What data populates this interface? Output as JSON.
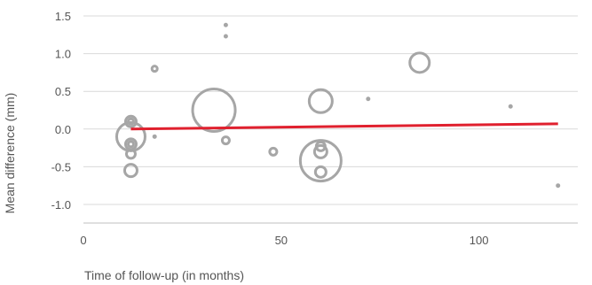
{
  "chart_data": {
    "type": "scatter",
    "title": "",
    "xlabel": "Time of follow-up (in months)",
    "ylabel": "Mean difference (mm)",
    "xlim": [
      0,
      125
    ],
    "ylim": [
      -1.25,
      1.5
    ],
    "xticks": [
      0,
      50,
      100
    ],
    "yticks": [
      -1.0,
      -0.5,
      0.0,
      0.5,
      1.0,
      1.5
    ],
    "ytick_labels": [
      "-1.0",
      "-0.5",
      "0.0",
      "0.5",
      "1.0",
      "1.5"
    ],
    "xtick_labels": [
      "0",
      "50",
      "100"
    ],
    "grid": "horizontal",
    "point_color": "#a6a6a6",
    "line_color": "#e0202e",
    "series": [
      {
        "name": "",
        "marker": "open-circle",
        "points": [
          {
            "x": 12,
            "y": 0.1,
            "size": 6
          },
          {
            "x": 12,
            "y": 0.1,
            "size": 3
          },
          {
            "x": 12,
            "y": -0.1,
            "size": 16
          },
          {
            "x": 12,
            "y": -0.2,
            "size": 6
          },
          {
            "x": 12,
            "y": -0.2,
            "size": 3
          },
          {
            "x": 12,
            "y": -0.33,
            "size": 5
          },
          {
            "x": 12,
            "y": -0.55,
            "size": 7
          },
          {
            "x": 18,
            "y": 0.8,
            "size": 3
          },
          {
            "x": 18,
            "y": -0.1,
            "size": 2
          },
          {
            "x": 33,
            "y": 0.25,
            "size": 24
          },
          {
            "x": 36,
            "y": 1.38,
            "size": 2
          },
          {
            "x": 36,
            "y": 1.23,
            "size": 2
          },
          {
            "x": 36,
            "y": -0.15,
            "size": 4
          },
          {
            "x": 48,
            "y": -0.3,
            "size": 4
          },
          {
            "x": 60,
            "y": 0.37,
            "size": 13
          },
          {
            "x": 60,
            "y": -0.23,
            "size": 5
          },
          {
            "x": 60,
            "y": -0.3,
            "size": 7
          },
          {
            "x": 60,
            "y": -0.42,
            "size": 23
          },
          {
            "x": 60,
            "y": -0.57,
            "size": 6
          },
          {
            "x": 72,
            "y": 0.4,
            "size": 2
          },
          {
            "x": 85,
            "y": 0.88,
            "size": 11
          },
          {
            "x": 108,
            "y": 0.3,
            "size": 2
          },
          {
            "x": 120,
            "y": -0.75,
            "size": 2
          }
        ]
      }
    ],
    "trend_line": {
      "x": [
        12,
        120
      ],
      "y": [
        0.0,
        0.07
      ]
    }
  }
}
